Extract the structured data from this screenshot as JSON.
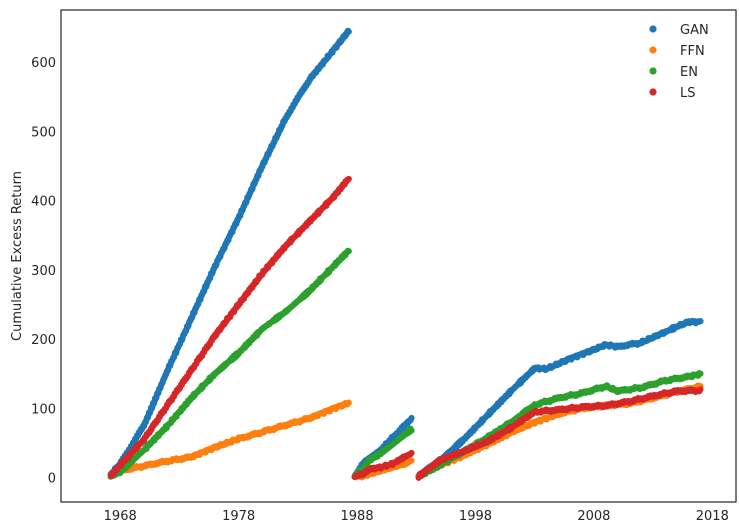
{
  "chart_data": {
    "type": "scatter",
    "title": "",
    "xlabel": "",
    "ylabel": "Cumulative Excess Return",
    "xlim": [
      1963,
      2020
    ],
    "ylim": [
      -35,
      675
    ],
    "xticks": [
      1968,
      1978,
      1988,
      1998,
      2008,
      2018
    ],
    "yticks": [
      0,
      100,
      200,
      300,
      400,
      500,
      600
    ],
    "grid": false,
    "legend_position": "top-right",
    "series": [
      {
        "name": "GAN",
        "color": "#1f77b4",
        "segments": [
          [
            [
              1967.2,
              5
            ],
            [
              1968,
              20
            ],
            [
              1970,
              75
            ],
            [
              1972,
              155
            ],
            [
              1974,
              230
            ],
            [
              1976,
              305
            ],
            [
              1978,
              375
            ],
            [
              1980,
              450
            ],
            [
              1982,
              520
            ],
            [
              1984,
              575
            ],
            [
              1986,
              617
            ],
            [
              1987.3,
              645
            ]
          ],
          [
            [
              1987.8,
              3
            ],
            [
              1988.5,
              20
            ],
            [
              1989,
              28
            ],
            [
              1990,
              40
            ],
            [
              1991,
              58
            ],
            [
              1992,
              75
            ],
            [
              1992.6,
              85
            ]
          ],
          [
            [
              1993.2,
              2
            ],
            [
              1995,
              25
            ],
            [
              1997,
              55
            ],
            [
              1999,
              90
            ],
            [
              2001,
              125
            ],
            [
              2003,
              158
            ],
            [
              2004,
              157
            ],
            [
              2006,
              172
            ],
            [
              2008,
              185
            ],
            [
              2009,
              192
            ],
            [
              2010,
              189
            ],
            [
              2012,
              195
            ],
            [
              2014,
              210
            ],
            [
              2015,
              218
            ],
            [
              2016,
              225
            ],
            [
              2017,
              225
            ]
          ]
        ]
      },
      {
        "name": "FFN",
        "color": "#ff7f0e",
        "segments": [
          [
            [
              1967.2,
              2
            ],
            [
              1968,
              10
            ],
            [
              1970,
              17
            ],
            [
              1972,
              24
            ],
            [
              1974,
              30
            ],
            [
              1976,
              44
            ],
            [
              1978,
              56
            ],
            [
              1980,
              66
            ],
            [
              1982,
              76
            ],
            [
              1984,
              86
            ],
            [
              1986,
              100
            ],
            [
              1987.3,
              108
            ]
          ],
          [
            [
              1987.8,
              2
            ],
            [
              1988.5,
              2
            ],
            [
              1989,
              5
            ],
            [
              1990,
              10
            ],
            [
              1991,
              15
            ],
            [
              1992,
              20
            ],
            [
              1992.6,
              25
            ]
          ],
          [
            [
              1993.2,
              2
            ],
            [
              1995,
              18
            ],
            [
              1997,
              32
            ],
            [
              1999,
              48
            ],
            [
              2001,
              65
            ],
            [
              2003,
              80
            ],
            [
              2005,
              92
            ],
            [
              2007,
              100
            ],
            [
              2009,
              104
            ],
            [
              2011,
              107
            ],
            [
              2013,
              115
            ],
            [
              2015,
              124
            ],
            [
              2017,
              132
            ]
          ]
        ]
      },
      {
        "name": "EN",
        "color": "#2ca02c",
        "segments": [
          [
            [
              1967.2,
              2
            ],
            [
              1968,
              8
            ],
            [
              1970,
              40
            ],
            [
              1972,
              75
            ],
            [
              1974,
              115
            ],
            [
              1976,
              150
            ],
            [
              1978,
              180
            ],
            [
              1980,
              215
            ],
            [
              1982,
              240
            ],
            [
              1984,
              270
            ],
            [
              1986,
              305
            ],
            [
              1987.3,
              328
            ]
          ],
          [
            [
              1987.8,
              2
            ],
            [
              1988.5,
              12
            ],
            [
              1989,
              25
            ],
            [
              1990,
              35
            ],
            [
              1991,
              48
            ],
            [
              1992,
              62
            ],
            [
              1992.6,
              70
            ]
          ],
          [
            [
              1993.2,
              2
            ],
            [
              1995,
              18
            ],
            [
              1997,
              38
            ],
            [
              1999,
              58
            ],
            [
              2001,
              80
            ],
            [
              2003,
              105
            ],
            [
              2005,
              115
            ],
            [
              2007,
              122
            ],
            [
              2009,
              132
            ],
            [
              2010,
              125
            ],
            [
              2012,
              130
            ],
            [
              2014,
              140
            ],
            [
              2016,
              146
            ],
            [
              2017,
              150
            ]
          ]
        ]
      },
      {
        "name": "LS",
        "color": "#d62728",
        "segments": [
          [
            [
              1967.2,
              2
            ],
            [
              1968,
              18
            ],
            [
              1970,
              55
            ],
            [
              1972,
              105
            ],
            [
              1974,
              155
            ],
            [
              1976,
              205
            ],
            [
              1978,
              250
            ],
            [
              1980,
              295
            ],
            [
              1982,
              335
            ],
            [
              1984,
              370
            ],
            [
              1986,
              405
            ],
            [
              1987.3,
              432
            ]
          ],
          [
            [
              1987.8,
              2
            ],
            [
              1988.5,
              5
            ],
            [
              1989,
              12
            ],
            [
              1990,
              15
            ],
            [
              1991,
              20
            ],
            [
              1992,
              30
            ],
            [
              1992.6,
              35
            ]
          ],
          [
            [
              1993.2,
              2
            ],
            [
              1995,
              25
            ],
            [
              1997,
              38
            ],
            [
              1999,
              52
            ],
            [
              2001,
              72
            ],
            [
              2003,
              95
            ],
            [
              2005,
              98
            ],
            [
              2007,
              102
            ],
            [
              2009,
              104
            ],
            [
              2011,
              110
            ],
            [
              2013,
              118
            ],
            [
              2015,
              125
            ],
            [
              2017,
              126
            ]
          ]
        ]
      }
    ]
  }
}
